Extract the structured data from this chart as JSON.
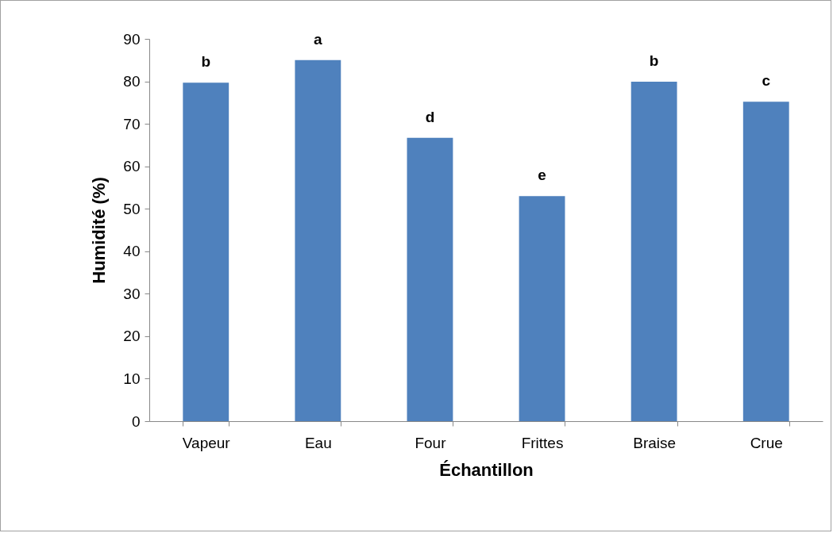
{
  "chart_data": {
    "type": "bar",
    "xlabel": "Échantillon",
    "ylabel": "Humidité (%)",
    "categories": [
      "Vapeur",
      "Eau",
      "Four",
      "Frittes",
      "Braise",
      "Crue"
    ],
    "values": [
      79.7,
      85.0,
      66.7,
      53.0,
      79.9,
      75.2
    ],
    "color": "#4f81bd",
    "ylim": [
      0,
      90
    ],
    "yticks": [
      0,
      10,
      20,
      30,
      40,
      50,
      60,
      70,
      80,
      90
    ],
    "annotations": [
      {
        "text": "b",
        "x": "Vapeur",
        "y": 79.7
      },
      {
        "text": "a",
        "x": "Eau",
        "y": 85.0
      },
      {
        "text": "d",
        "x": "Four",
        "y": 66.7
      },
      {
        "text": "e",
        "x": "Frittes",
        "y": 53.0
      },
      {
        "text": "b",
        "x": "Braise",
        "y": 79.9
      },
      {
        "text": "c",
        "x": "Crue",
        "y": 75.2
      }
    ]
  }
}
